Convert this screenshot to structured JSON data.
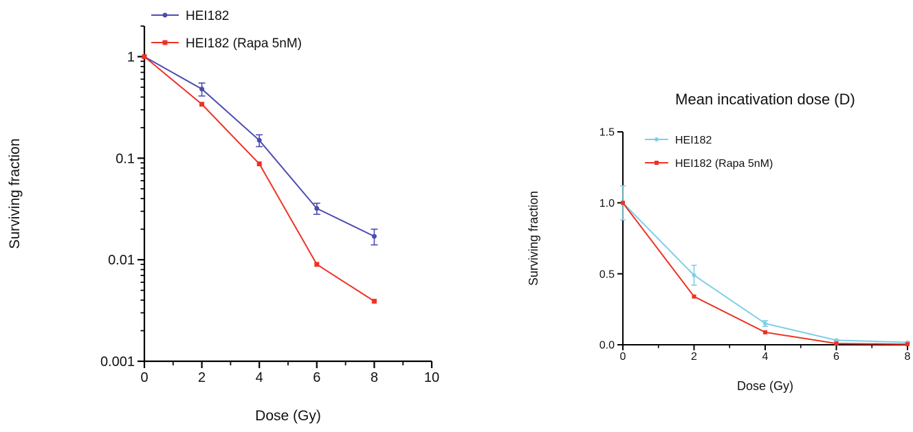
{
  "chart_data": [
    {
      "type": "line",
      "title": "",
      "xlabel": "Dose (Gy)",
      "ylabel": "Surviving fraction",
      "xlim": [
        0,
        10
      ],
      "ylim": [
        0.001,
        2
      ],
      "yscale": "log",
      "xticks": [
        "0",
        "2",
        "4",
        "6",
        "8",
        "10"
      ],
      "yticks": [
        "1",
        "0.1",
        "0.01",
        "0.001"
      ],
      "legend_position": "top-left",
      "series": [
        {
          "name": "HEI182",
          "color": "#4b4bb0",
          "marker": "circle",
          "x": [
            0,
            2,
            4,
            6,
            8
          ],
          "y": [
            1.0,
            0.48,
            0.15,
            0.032,
            0.017
          ],
          "error": [
            0.0,
            0.07,
            0.02,
            0.004,
            0.003
          ]
        },
        {
          "name": "HEI182 (Rapa 5nM)",
          "color": "#ee3124",
          "marker": "square",
          "x": [
            0,
            2,
            4,
            6,
            8
          ],
          "y": [
            1.0,
            0.34,
            0.088,
            0.009,
            0.0039
          ],
          "error": [
            0,
            0,
            0,
            0,
            0
          ]
        }
      ]
    },
    {
      "type": "line",
      "title": "Mean incativation dose (D)",
      "xlabel": "Dose (Gy)",
      "ylabel": "Surviving fraction",
      "xlim": [
        0,
        8
      ],
      "ylim": [
        0,
        1.5
      ],
      "yscale": "linear",
      "xticks": [
        "0",
        "2",
        "4",
        "6",
        "8"
      ],
      "yticks": [
        "0.0",
        "0.5",
        "1.0",
        "1.5"
      ],
      "legend_position": "top-left",
      "series": [
        {
          "name": "HEI182",
          "color": "#7ecfe6",
          "marker": "circle",
          "x": [
            0,
            2,
            4,
            6,
            8
          ],
          "y": [
            1.0,
            0.49,
            0.15,
            0.032,
            0.017
          ],
          "error": [
            0.12,
            0.07,
            0.02,
            0.004,
            0.003
          ]
        },
        {
          "name": "HEI182 (Rapa 5nM)",
          "color": "#ee3124",
          "marker": "square",
          "x": [
            0,
            2,
            4,
            6,
            8
          ],
          "y": [
            1.0,
            0.34,
            0.088,
            0.009,
            0.0039
          ],
          "error": [
            0,
            0,
            0,
            0,
            0
          ]
        }
      ]
    }
  ]
}
